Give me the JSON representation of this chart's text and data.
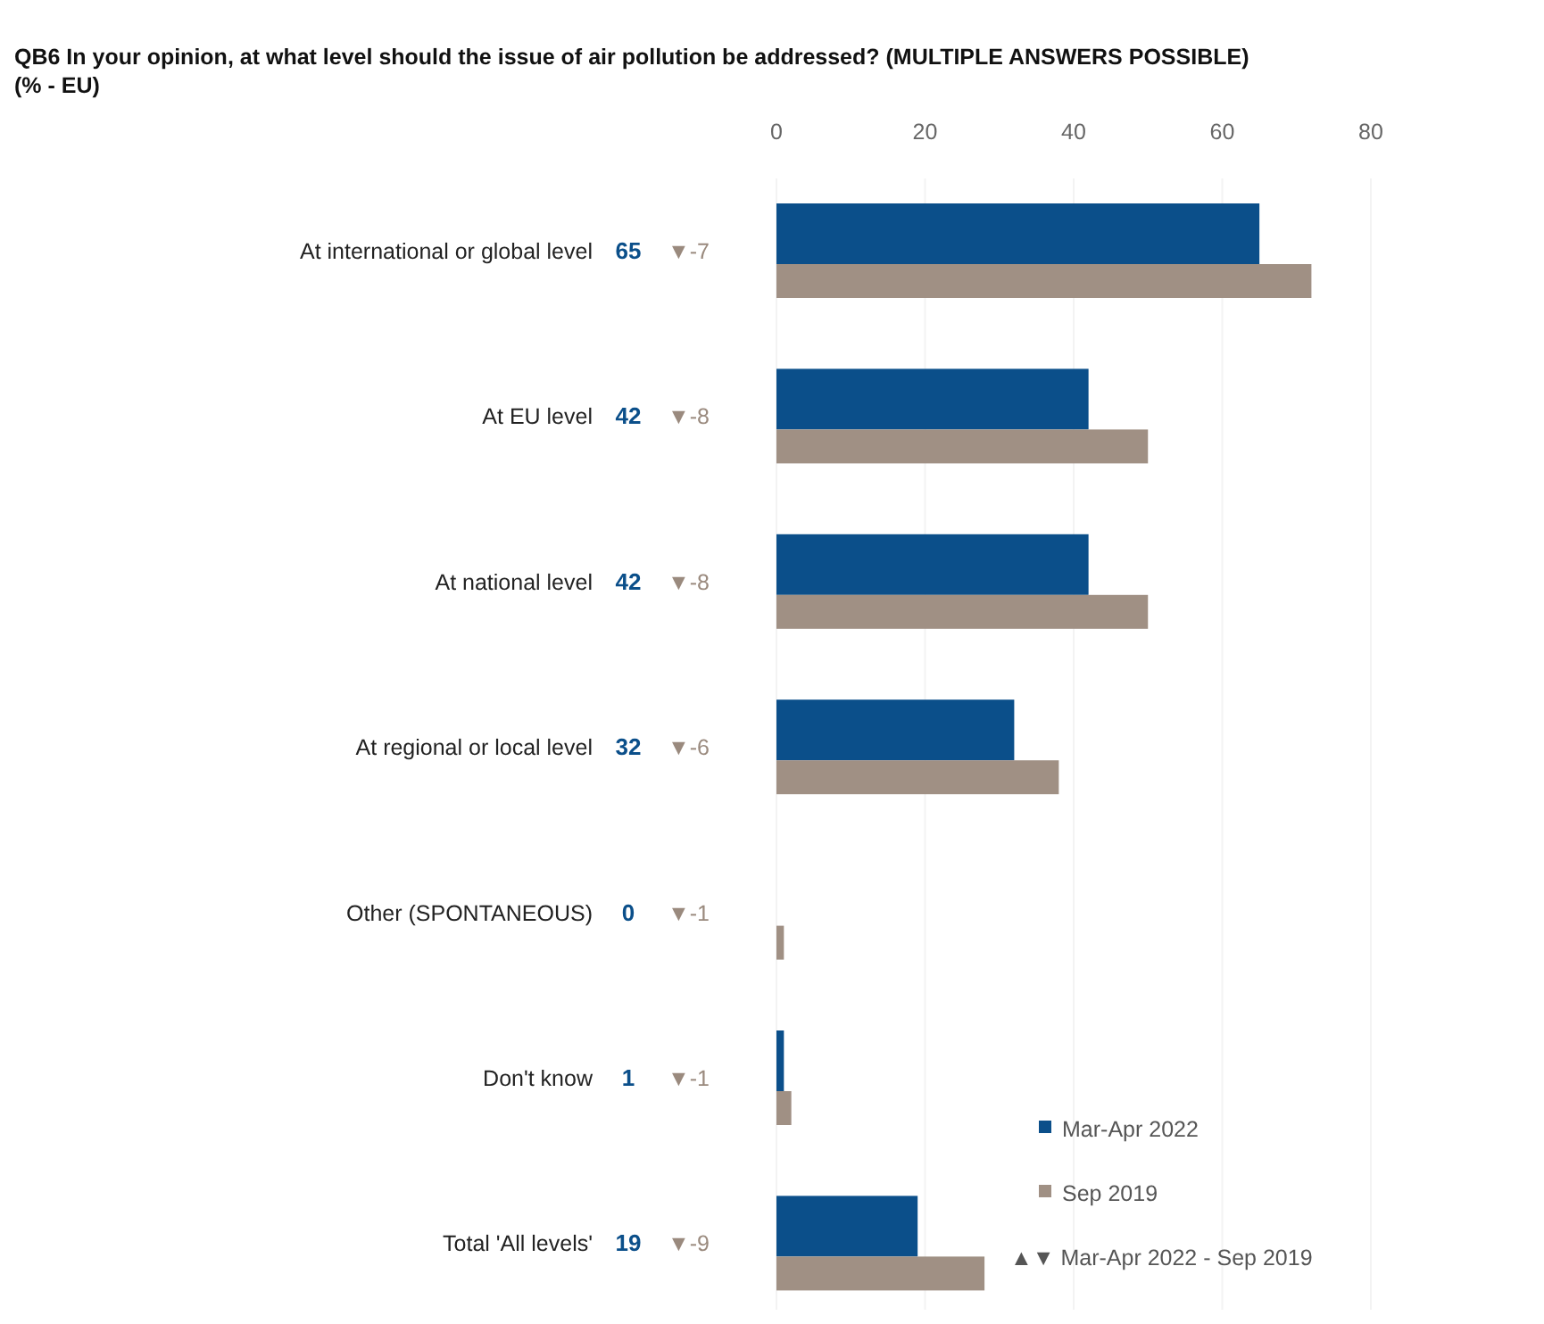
{
  "chart_data": {
    "type": "bar",
    "orientation": "horizontal",
    "title": "QB6 In your opinion, at what level should the issue of air pollution be addressed? (MULTIPLE ANSWERS POSSIBLE)",
    "subtitle": "(% - EU)",
    "categories": [
      "At international or global level",
      "At EU level",
      "At national level",
      "At regional or local level",
      "Other (SPONTANEOUS)",
      "Don't know",
      "Total 'All levels'"
    ],
    "series": [
      {
        "name": "Mar-Apr 2022",
        "color": "#0b4f8a",
        "values": [
          65,
          42,
          42,
          32,
          0,
          1,
          19
        ],
        "value_labels": [
          "65",
          "42",
          "42",
          "32",
          "0",
          "1",
          "19"
        ]
      },
      {
        "name": "Sep 2019",
        "color": "#a09084",
        "values": [
          72,
          50,
          50,
          38,
          1,
          2,
          28
        ]
      }
    ],
    "x2lim": [
      0,
      80
    ],
    "x2ticks": [
      0,
      20,
      40,
      60,
      80
    ],
    "grid": "x",
    "legend": "bottom right",
    "annotations": [
      "▼-7",
      "▼-8",
      "▼-8",
      "▼-6",
      "▼-1",
      "▼-1",
      "▼-9",
      "▲▼ Mar-Apr 2022 - Sep 2019"
    ]
  }
}
